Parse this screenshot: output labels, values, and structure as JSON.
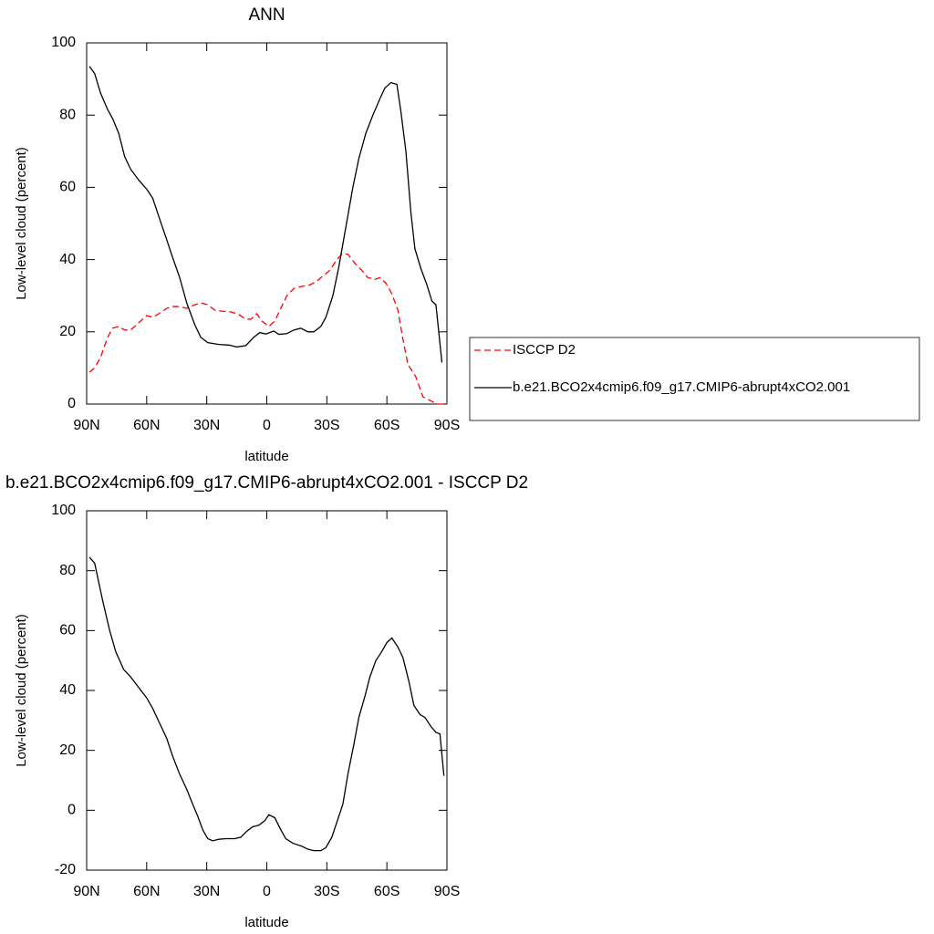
{
  "chart_data": [
    {
      "type": "line",
      "title": "ANN",
      "x_label": "latitude",
      "y_label": "Low-level cloud (percent)",
      "xlim": [
        90,
        -90
      ],
      "xticks": [
        {
          "value": 90,
          "label": "90N"
        },
        {
          "value": 60,
          "label": "60N"
        },
        {
          "value": 30,
          "label": "30N"
        },
        0,
        {
          "value": -30,
          "label": "30S"
        },
        {
          "value": -60,
          "label": "60S"
        },
        {
          "value": -90,
          "label": "90S"
        }
      ],
      "ylim": [
        0,
        100
      ],
      "yticks": [
        0,
        20,
        40,
        60,
        80,
        100
      ],
      "legend": "right",
      "series": [
        {
          "name": "ISCCP D2",
          "color": "#ff0000",
          "dash": true,
          "x": [
            88.6,
            86,
            83,
            79.5,
            77,
            74,
            71,
            68,
            64,
            60,
            57,
            54,
            50,
            47,
            43.5,
            40,
            36,
            33,
            29.5,
            26,
            22,
            18,
            14.5,
            10.5,
            8,
            5,
            2.5,
            -1,
            -4,
            -7,
            -10,
            -13.5,
            -17,
            -21.5,
            -25,
            -28,
            -31.5,
            -35,
            -37.5,
            -40.5,
            -44,
            -47.5,
            -50.5,
            -54,
            -56.5,
            -59.5,
            -62.5,
            -65.5,
            -68,
            -70.5,
            -74.5,
            -78,
            -81.5,
            -85.5,
            -88.6
          ],
          "values": [
            8.8,
            10,
            13,
            18.5,
            21,
            21.5,
            20.5,
            20.5,
            22.5,
            24.5,
            24,
            25,
            26.5,
            27,
            27,
            26.5,
            27.5,
            28,
            27.5,
            26,
            25.7,
            25.5,
            25,
            23.5,
            23.5,
            25,
            23,
            21.5,
            23,
            26.5,
            30,
            32,
            32.5,
            33,
            34,
            35.5,
            37,
            40,
            41.5,
            41.5,
            39,
            37,
            35,
            34.5,
            35,
            33.5,
            30.5,
            26,
            18,
            11,
            7.5,
            2,
            1,
            0,
            0
          ]
        },
        {
          "name": "b.e21.BCO2x4cmip6.f09_g17.CMIP6-abrupt4xCO2.001",
          "color": "#000000",
          "dash": false,
          "x": [
            88.6,
            86,
            83,
            79.5,
            77,
            74,
            71,
            68,
            64,
            60,
            57,
            54,
            50,
            47,
            43.5,
            40,
            36,
            33,
            29.5,
            24,
            18.5,
            15,
            10.5,
            6.5,
            3.5,
            0.5,
            -3.5,
            -6,
            -10,
            -13.5,
            -17,
            -20.5,
            -23.5,
            -27,
            -29.5,
            -33,
            -36,
            -39.5,
            -43,
            -46,
            -49.5,
            -53,
            -56.5,
            -59,
            -62,
            -65,
            -67,
            -69.5,
            -72,
            -74,
            -77,
            -80,
            -82.5,
            -84.5,
            -87.5
          ],
          "values": [
            93.5,
            91.5,
            86,
            81.5,
            79,
            75,
            68.5,
            65,
            62,
            59.5,
            57,
            52,
            45.5,
            40.5,
            35,
            28,
            22,
            18.5,
            17,
            16.5,
            16.3,
            15.8,
            16.2,
            18.5,
            19.8,
            19.4,
            20.2,
            19.3,
            19.5,
            20.5,
            21,
            20,
            20,
            21.5,
            24,
            30,
            38,
            49,
            60,
            68,
            75,
            80,
            84.5,
            87.5,
            89,
            88.5,
            81,
            70,
            53,
            43,
            37.5,
            33,
            28.5,
            27.5,
            11.5
          ]
        }
      ]
    },
    {
      "type": "line",
      "title": "b.e21.BCO2x4cmip6.f09_g17.CMIP6-abrupt4xCO2.001 - ISCCP D2",
      "x_label": "latitude",
      "y_label": "Low-level cloud (percent)",
      "xlim": [
        90,
        -90
      ],
      "xticks": [
        {
          "value": 90,
          "label": "90N"
        },
        {
          "value": 60,
          "label": "60N"
        },
        {
          "value": 30,
          "label": "30N"
        },
        0,
        {
          "value": -30,
          "label": "30S"
        },
        {
          "value": -60,
          "label": "60S"
        },
        {
          "value": -90,
          "label": "90S"
        }
      ],
      "ylim": [
        -20,
        100
      ],
      "yticks": [
        -20,
        0,
        20,
        40,
        60,
        80,
        100
      ],
      "series": [
        {
          "color": "#000000",
          "dash": false,
          "x": [
            88.6,
            86,
            82,
            78.5,
            75.5,
            71.5,
            68,
            64,
            60,
            57,
            53.5,
            50,
            47,
            43.5,
            40,
            37,
            34.5,
            32,
            29.5,
            27,
            24,
            20.5,
            16,
            13,
            10,
            7,
            4,
            1,
            -1,
            -4,
            -7,
            -9.5,
            -13,
            -17.5,
            -20.5,
            -23.5,
            -27,
            -29.5,
            -32.5,
            -35,
            -38,
            -40.5,
            -43.5,
            -46,
            -49,
            -51.5,
            -54.5,
            -57,
            -60,
            -62.5,
            -65.5,
            -68,
            -71,
            -73.5,
            -76.5,
            -79,
            -82,
            -84.5,
            -86.5,
            -88.5
          ],
          "values": [
            84.5,
            82.5,
            70,
            60,
            53,
            47,
            44.5,
            41,
            37.5,
            34,
            29,
            24,
            18,
            12,
            7,
            2,
            -2,
            -6.5,
            -9.5,
            -10.2,
            -9.7,
            -9.5,
            -9.5,
            -9,
            -7,
            -5.5,
            -5,
            -3.5,
            -1.5,
            -2.5,
            -6.5,
            -9.5,
            -11,
            -12,
            -13,
            -13.5,
            -13.5,
            -12.5,
            -9,
            -4,
            2,
            12,
            22,
            31,
            38,
            44.5,
            50,
            52.5,
            56,
            57.5,
            54.5,
            51,
            43,
            35,
            32,
            31,
            28,
            26,
            25.5,
            11.5
          ]
        }
      ]
    }
  ]
}
